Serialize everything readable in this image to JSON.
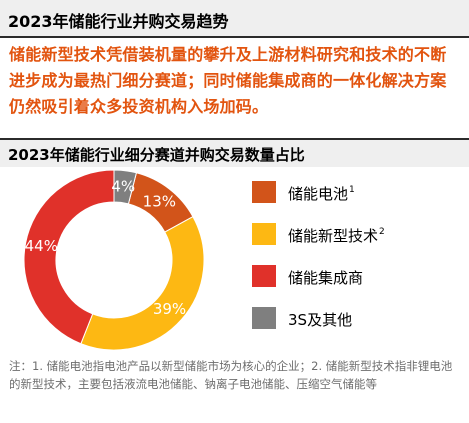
{
  "header": {
    "title": "2023年储能行业并购交易趋势",
    "summary": "储能新型技术凭借装机量的攀升及上游材料研究和技术的不断进步成为最热门细分赛道；同时储能集成商的一体化解决方案仍然吸引着众多投资机构入场加码。"
  },
  "chart_data": {
    "type": "pie",
    "variant": "donut",
    "title": "2023年储能行业细分赛道并购交易数量占比",
    "categories": [
      "储能电池",
      "储能新型技术",
      "储能集成商",
      "3S及其他"
    ],
    "values": [
      13,
      39,
      44,
      4
    ],
    "value_labels": [
      "13%",
      "39%",
      "44%",
      "4%"
    ],
    "legend_superscripts": [
      "1",
      "2",
      "",
      ""
    ],
    "colors": [
      "#d2541a",
      "#fdb813",
      "#e0312a",
      "#7f7f7f"
    ],
    "legend_position": "right"
  },
  "footnote": "注：1. 储能电池指电池产品以新型储能市场为核心的企业；2. 储能新型技术指非锂电池的新型技术，主要包括液流电池储能、钠离子电池储能、压缩空气储能等"
}
